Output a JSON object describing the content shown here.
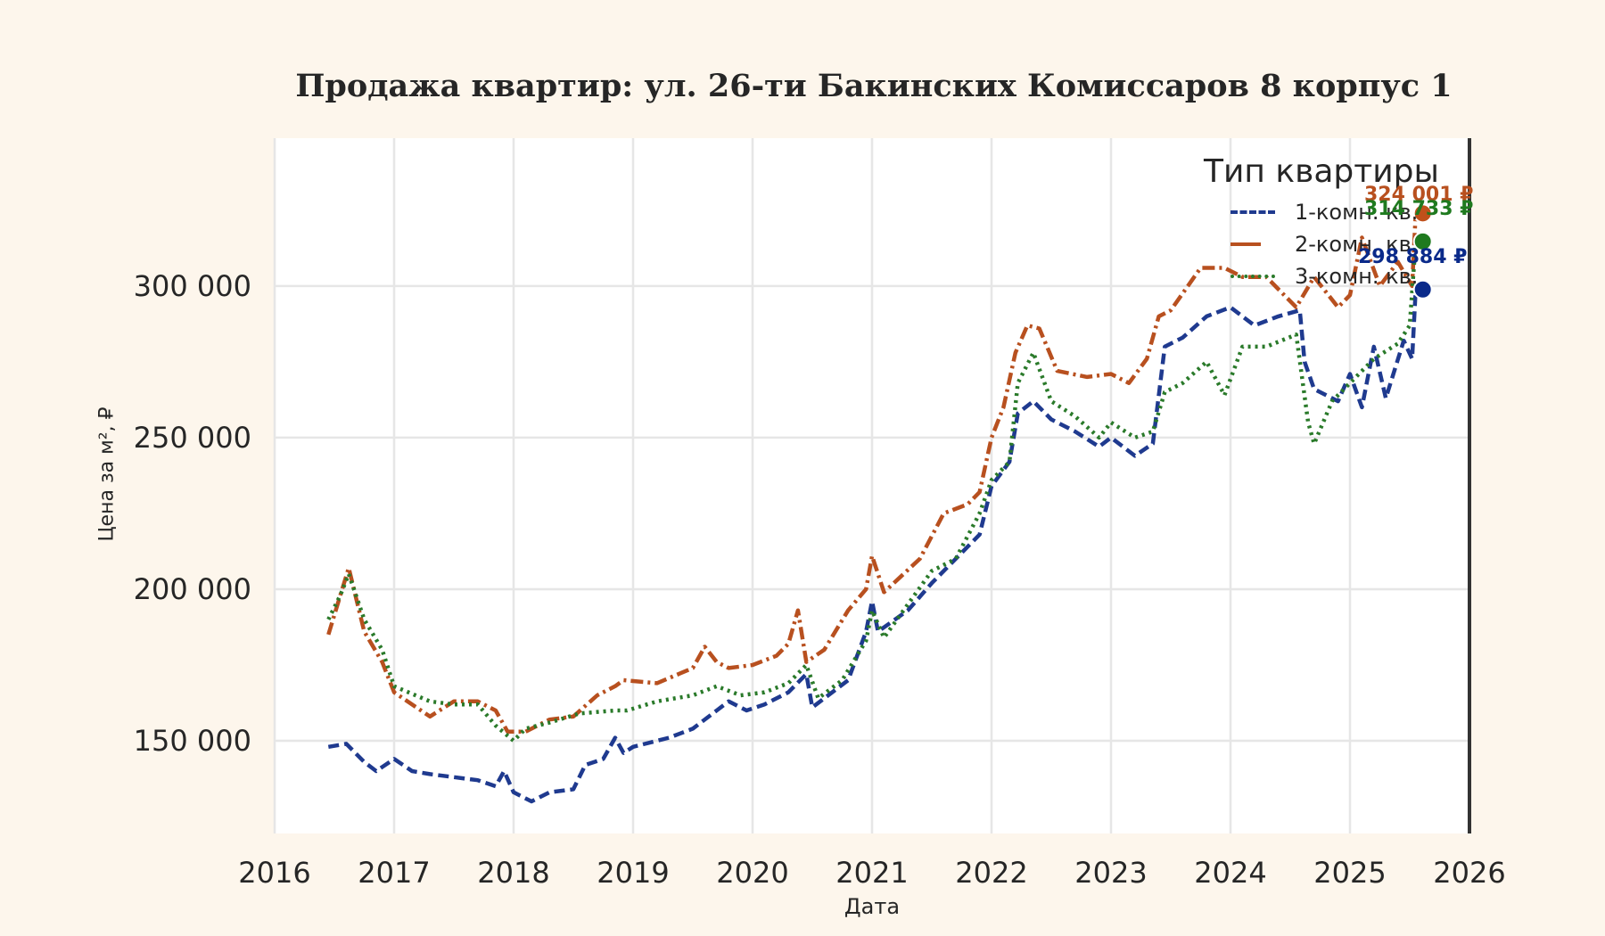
{
  "chart_data": {
    "type": "line",
    "title": "Продажа квартир: ул. 26-ти Бакинских Комиссаров 8 корпус 1",
    "xlabel": "Дата",
    "ylabel": "Цена за м², ₽",
    "xlim": [
      2016,
      2026
    ],
    "ylim": [
      119400,
      348800
    ],
    "x_ticks": [
      "2016",
      "2017",
      "2018",
      "2019",
      "2020",
      "2021",
      "2022",
      "2023",
      "2024",
      "2025",
      "2026"
    ],
    "y_ticks": [
      "150 000",
      "200 000",
      "250 000",
      "300 000"
    ],
    "y_tick_values": [
      150000,
      200000,
      250000,
      300000
    ],
    "grid": true,
    "legend": {
      "title": "Тип квартиры",
      "position": "upper right",
      "entries": [
        "1-комн. кв.",
        "2-комн. кв.",
        "3-комн. кв."
      ]
    },
    "series": [
      {
        "name": "1-комн. кв.",
        "color": "#1f3a8f",
        "style": "dashed",
        "x": [
          2016.45,
          2016.6,
          2016.75,
          2016.85,
          2017.0,
          2017.15,
          2017.3,
          2017.5,
          2017.7,
          2017.85,
          2017.92,
          2018.0,
          2018.15,
          2018.3,
          2018.5,
          2018.6,
          2018.75,
          2018.85,
          2018.92,
          2019.0,
          2019.3,
          2019.5,
          2019.7,
          2019.8,
          2019.95,
          2020.1,
          2020.3,
          2020.45,
          2020.5,
          2020.6,
          2020.8,
          2020.95,
          2021.0,
          2021.05,
          2021.3,
          2021.5,
          2021.7,
          2021.9,
          2022.0,
          2022.15,
          2022.22,
          2022.35,
          2022.5,
          2022.7,
          2022.9,
          2023.0,
          2023.2,
          2023.35,
          2023.45,
          2023.6,
          2023.8,
          2024.0,
          2024.2,
          2024.4,
          2024.58,
          2024.62,
          2024.7,
          2024.9,
          2025.0,
          2025.1,
          2025.2,
          2025.3,
          2025.45,
          2025.52,
          2025.55
        ],
        "values": [
          148000,
          149000,
          143000,
          140000,
          144000,
          140000,
          139000,
          138000,
          137000,
          135000,
          140000,
          133000,
          130000,
          133000,
          134000,
          142000,
          144000,
          151000,
          146000,
          148000,
          151000,
          154000,
          160000,
          163000,
          160000,
          162000,
          166000,
          172000,
          161000,
          164000,
          170000,
          186000,
          196000,
          186000,
          193000,
          202000,
          210000,
          218000,
          234000,
          242000,
          258000,
          262000,
          256000,
          252000,
          247000,
          250000,
          244000,
          248000,
          280000,
          283000,
          290000,
          293000,
          287000,
          290000,
          292000,
          275000,
          266000,
          262000,
          271000,
          260000,
          280000,
          263000,
          282000,
          276000,
          298884
        ]
      },
      {
        "name": "2-комн. кв.",
        "color": "#b8501f",
        "style": "dashdot",
        "x": [
          2016.45,
          2016.55,
          2016.62,
          2016.75,
          2016.9,
          2017.0,
          2017.3,
          2017.5,
          2017.7,
          2017.85,
          2017.95,
          2018.1,
          2018.3,
          2018.5,
          2018.7,
          2018.85,
          2018.92,
          2019.2,
          2019.5,
          2019.6,
          2019.7,
          2019.8,
          2020.0,
          2020.2,
          2020.3,
          2020.38,
          2020.45,
          2020.6,
          2020.8,
          2020.95,
          2021.0,
          2021.1,
          2021.4,
          2021.6,
          2021.8,
          2021.9,
          2022.0,
          2022.1,
          2022.2,
          2022.3,
          2022.4,
          2022.55,
          2022.8,
          2023.0,
          2023.15,
          2023.3,
          2023.4,
          2023.5,
          2023.75,
          2023.95,
          2024.1,
          2024.3,
          2024.55,
          2024.7,
          2024.9,
          2025.0,
          2025.1,
          2025.25,
          2025.4,
          2025.52,
          2025.55
        ],
        "values": [
          185000,
          198000,
          207000,
          186000,
          176000,
          166000,
          158000,
          163000,
          163000,
          160000,
          153000,
          153000,
          157000,
          158000,
          165000,
          168000,
          170000,
          169000,
          174000,
          181000,
          176000,
          174000,
          175000,
          178000,
          182000,
          193000,
          176000,
          180000,
          193000,
          200000,
          211000,
          199000,
          210000,
          225000,
          228000,
          232000,
          250000,
          260000,
          278000,
          287000,
          286000,
          272000,
          270000,
          271000,
          268000,
          276000,
          290000,
          292000,
          306000,
          306000,
          303000,
          303000,
          293000,
          303000,
          293000,
          297000,
          316000,
          300000,
          308000,
          300000,
          324001
        ]
      },
      {
        "name": "3-комн. кв.",
        "color": "#2a7a2a",
        "style": "dotted",
        "x": [
          2016.45,
          2016.55,
          2016.62,
          2016.75,
          2016.9,
          2017.0,
          2017.3,
          2017.5,
          2017.7,
          2017.85,
          2018.0,
          2018.1,
          2018.3,
          2018.55,
          2018.85,
          2018.95,
          2019.2,
          2019.5,
          2019.7,
          2019.9,
          2020.1,
          2020.3,
          2020.45,
          2020.55,
          2020.75,
          2020.95,
          2021.0,
          2021.1,
          2021.3,
          2021.5,
          2021.7,
          2021.9,
          2022.0,
          2022.15,
          2022.22,
          2022.35,
          2022.5,
          2022.7,
          2022.9,
          2023.0,
          2023.2,
          2023.35,
          2023.45,
          2023.6,
          2023.8,
          2023.95,
          2024.1,
          2024.3,
          2024.55,
          2024.65,
          2024.7,
          2024.85,
          2025.0,
          2025.2,
          2025.4,
          2025.5,
          2025.55
        ],
        "values": [
          190000,
          198000,
          205000,
          190000,
          180000,
          168000,
          163000,
          162000,
          162000,
          155000,
          150000,
          154000,
          156000,
          159000,
          160000,
          160000,
          163000,
          165000,
          168000,
          165000,
          166000,
          169000,
          175000,
          164000,
          170000,
          183000,
          193000,
          184000,
          195000,
          206000,
          210000,
          225000,
          236000,
          242000,
          268000,
          278000,
          262000,
          257000,
          250000,
          255000,
          250000,
          252000,
          265000,
          268000,
          275000,
          264000,
          280000,
          280000,
          284000,
          255000,
          248000,
          262000,
          268000,
          276000,
          281000,
          287000,
          314733
        ]
      }
    ],
    "annotations": [
      {
        "text": "324 001 ₽",
        "series": "2-комн. кв.",
        "x": 2025.55,
        "y": 324001,
        "color": "#b8501f"
      },
      {
        "text": "314 733 ₽",
        "series": "3-комн. кв.",
        "x": 2025.55,
        "y": 314733,
        "color": "#1f7a1f"
      },
      {
        "text": "298 884 ₽",
        "series": "1-комн. кв.",
        "x": 2025.55,
        "y": 298884,
        "color": "#0a2a8a"
      }
    ]
  }
}
